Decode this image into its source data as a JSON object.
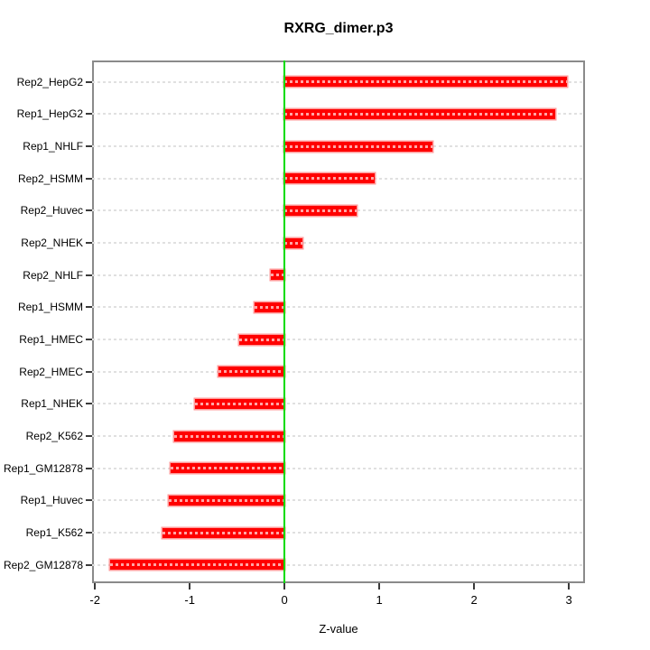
{
  "chart_data": {
    "type": "bar",
    "orientation": "horizontal",
    "title": "RXRG_dimer.p3",
    "xlabel": "Z-value",
    "ylabel": "",
    "categories": [
      "Rep2_HepG2",
      "Rep1_HepG2",
      "Rep1_NHLF",
      "Rep2_HSMM",
      "Rep2_Huvec",
      "Rep2_NHEK",
      "Rep2_NHLF",
      "Rep1_HSMM",
      "Rep1_HMEC",
      "Rep2_HMEC",
      "Rep1_NHEK",
      "Rep2_K562",
      "Rep1_GM12878",
      "Rep1_Huvec",
      "Rep1_K562",
      "Rep2_GM12878"
    ],
    "values": [
      2.98,
      2.86,
      1.56,
      0.95,
      0.76,
      0.19,
      -0.14,
      -0.32,
      -0.48,
      -0.7,
      -0.94,
      -1.16,
      -1.2,
      -1.22,
      -1.29,
      -1.84
    ],
    "x_ticks": [
      "-2",
      "-1",
      "0",
      "1",
      "2",
      "3"
    ],
    "x_tick_values": [
      -2,
      -1,
      0,
      1,
      2,
      3
    ],
    "xlim": [
      -2.03,
      3.17
    ],
    "grid": true,
    "legend": null,
    "colors": {
      "bar": "#ff0000",
      "zero_line": "#00dc00",
      "grid": "#e0e0e0",
      "box": "#8a8a8a",
      "text": "#000000"
    }
  }
}
